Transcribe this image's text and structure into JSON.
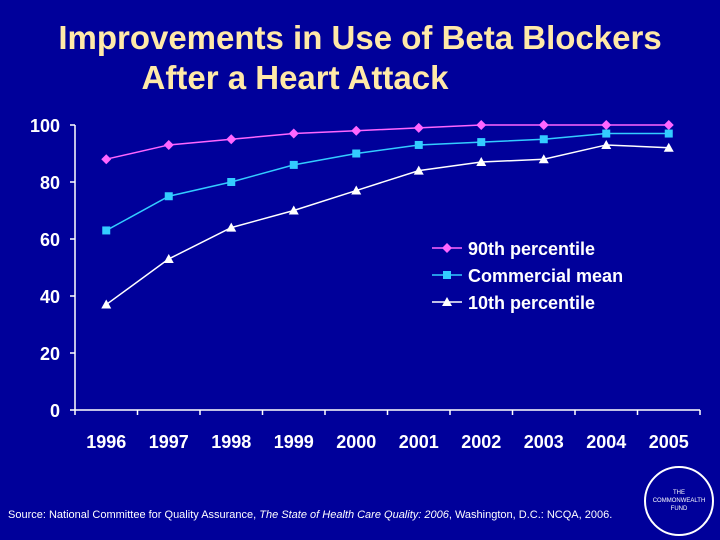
{
  "slide": {
    "title_line1": "Improvements in Use of Beta Blockers",
    "title_line2": "After a Heart Attack",
    "source_prefix": "Source: National Committee for Quality Assurance, ",
    "source_title": "The State of Health Care Quality: 2006",
    "source_suffix": ", Washington, D.C.: NCQA, 2006.",
    "logo_text": [
      "THE",
      "COMMONWEALTH",
      "FUND"
    ]
  },
  "colors": {
    "background": "#00009a",
    "title": "#ffe9a8",
    "text": "#ffffff",
    "series_90th": "#ff66ff",
    "series_commercial": "#33ccff",
    "series_10th": "#ffffff"
  },
  "chart_data": {
    "type": "line",
    "title": "Improvements in Use of Beta Blockers After a Heart Attack",
    "xlabel": "",
    "ylabel": "",
    "categories": [
      "1996",
      "1997",
      "1998",
      "1999",
      "2000",
      "2001",
      "2002",
      "2003",
      "2004",
      "2005"
    ],
    "ylim": [
      0,
      100
    ],
    "yticks": [
      "0",
      "20",
      "40",
      "60",
      "80",
      "100"
    ],
    "grid": false,
    "legend_position": "right-middle",
    "series": [
      {
        "name": "90th percentile",
        "marker": "diamond",
        "values": [
          88,
          93,
          95,
          97,
          98,
          99,
          100,
          100,
          100,
          100
        ]
      },
      {
        "name": "Commercial mean",
        "marker": "square",
        "values": [
          63,
          75,
          80,
          86,
          90,
          93,
          94,
          95,
          97,
          97
        ]
      },
      {
        "name": "10th percentile",
        "marker": "triangle",
        "values": [
          37,
          53,
          64,
          70,
          77,
          84,
          87,
          88,
          93,
          92
        ]
      }
    ]
  }
}
